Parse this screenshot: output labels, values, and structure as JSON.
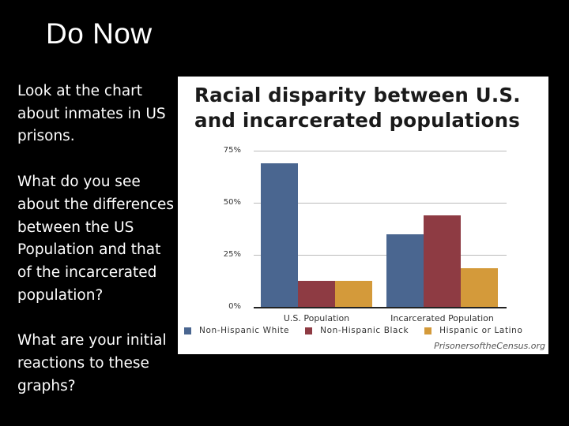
{
  "slide": {
    "title": "Do Now",
    "paragraphs": [
      "Look at the chart about inmates in US prisons.",
      "What do you see about the differences between the US Population and that of the incarcerated population?",
      "What are your initial reactions to these graphs?"
    ]
  },
  "chart_data": {
    "type": "bar",
    "title": "Racial disparity between U.S. and incarcerated populations",
    "title_lines": [
      "Racial disparity between U.S.",
      "and incarcerated populations"
    ],
    "categories": [
      "U.S. Population",
      "Incarcerated Population"
    ],
    "series": [
      {
        "name": "Non-Hispanic White",
        "color": "#4a6690",
        "values": [
          69,
          35
        ]
      },
      {
        "name": "Non-Hispanic Black",
        "color": "#8e3b43",
        "values": [
          12.5,
          44
        ]
      },
      {
        "name": "Hispanic or Latino",
        "color": "#d49a3a",
        "values": [
          12.5,
          18.5
        ]
      }
    ],
    "yticks": [
      "0%",
      "25%",
      "50%",
      "75%"
    ],
    "ylim": [
      0,
      75
    ],
    "xlabel": "",
    "ylabel": "",
    "grid": true,
    "legend_position": "bottom",
    "source": "PrisonersoftheCensus.org"
  }
}
